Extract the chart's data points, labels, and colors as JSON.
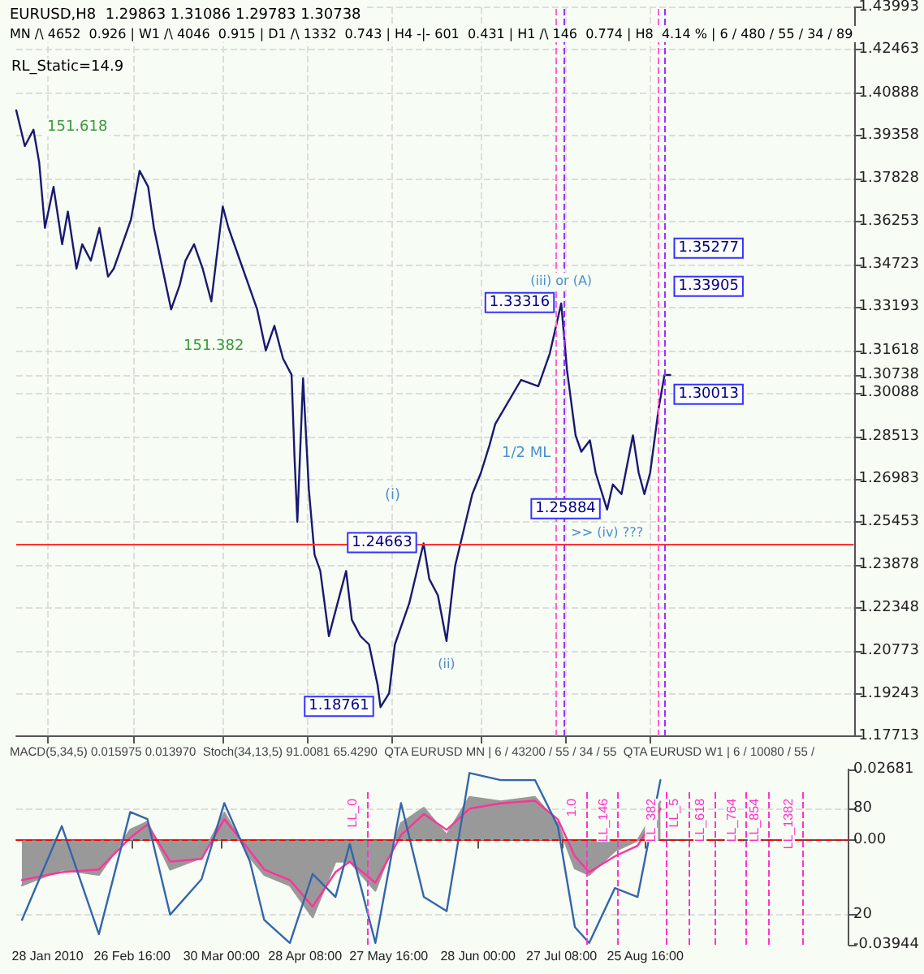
{
  "chart_data": [
    {
      "type": "line",
      "title": "EURUSD,H8  1.29863 1.31086 1.29783 1.30738",
      "subtitle": "MN /\\ 4652  0.926 | W1 /\\ 4046  0.915 | D1 /\\ 1332  0.743 | H4 -|- 601  0.431 | H1 /\\ 146  0.774 | H8  4.14 % | 6 / 480 / 55 / 34 / 89",
      "x": [
        "2010-01-17",
        "2010-01-20",
        "2010-01-23",
        "2010-01-25",
        "2010-01-27",
        "2010-01-30",
        "2010-02-02",
        "2010-02-04",
        "2010-02-07",
        "2010-02-09",
        "2010-02-12",
        "2010-02-15",
        "2010-02-18",
        "2010-02-20",
        "2010-02-23",
        "2010-02-26",
        "2010-03-01",
        "2010-03-04",
        "2010-03-06",
        "2010-03-09",
        "2010-03-12",
        "2010-03-15",
        "2010-03-17",
        "2010-03-20",
        "2010-03-23",
        "2010-03-26",
        "2010-03-30",
        "2010-04-01",
        "2010-04-06",
        "2010-04-09",
        "2010-04-11",
        "2010-04-14",
        "2010-04-17",
        "2010-04-20",
        "2010-04-23",
        "2010-04-24",
        "2010-04-25",
        "2010-04-27",
        "2010-04-29",
        "2010-05-01",
        "2010-05-03",
        "2010-05-06",
        "2010-05-09",
        "2010-05-12",
        "2010-05-14",
        "2010-05-17",
        "2010-05-20",
        "2010-05-23",
        "2010-05-24",
        "2010-05-27",
        "2010-05-29",
        "2010-06-01",
        "2010-06-03",
        "2010-06-08",
        "2010-06-10",
        "2010-06-13",
        "2010-06-16",
        "2010-06-19",
        "2010-06-25",
        "2010-06-28",
        "2010-07-01",
        "2010-07-03",
        "2010-07-12",
        "2010-07-18",
        "2010-07-22",
        "2010-07-26",
        "2010-07-28",
        "2010-07-31",
        "2010-08-02",
        "2010-08-05",
        "2010-08-07",
        "2010-08-11",
        "2010-08-13",
        "2010-08-16",
        "2010-08-20",
        "2010-08-22",
        "2010-08-24",
        "2010-08-26",
        "2010-08-29",
        "2010-08-31",
        "2010-09-02"
      ],
      "series": [
        {
          "color": "#191970",
          "values": [
            1.4028,
            1.3899,
            1.3958,
            1.384,
            1.3604,
            1.3752,
            1.3545,
            1.3663,
            1.3457,
            1.3545,
            1.3486,
            1.3604,
            1.3428,
            1.3457,
            1.3545,
            1.3634,
            1.381,
            1.3752,
            1.3604,
            1.3457,
            1.331,
            1.3398,
            1.3486,
            1.3545,
            1.3457,
            1.3339,
            1.3681,
            1.3604,
            1.3457,
            1.3369,
            1.331,
            1.3162,
            1.3251,
            1.3133,
            1.3074,
            1.278,
            1.2544,
            1.3062,
            1.2662,
            1.2426,
            1.2367,
            1.2132,
            1.225,
            1.2367,
            1.2191,
            1.2132,
            1.2102,
            1.1955,
            1.18761,
            1.1926,
            1.2102,
            1.2191,
            1.225,
            1.24663,
            1.2338,
            1.2279,
            1.2114,
            1.2385,
            1.2644,
            1.2721,
            1.2821,
            1.2897,
            1.3056,
            1.3033,
            1.3151,
            1.33316,
            1.3092,
            1.2856,
            1.2797,
            1.2838,
            1.2721,
            1.25884,
            1.2679,
            1.2644,
            1.2856,
            1.2721,
            1.2644,
            1.2721,
            1.2956,
            1.3074,
            1.30738
          ]
        }
      ],
      "xlim": [
        "2010-01-17",
        "2010-11-05"
      ],
      "xticks": [
        {
          "value": "2010-01-28",
          "label": null
        },
        {
          "value": "2010-02-26T16:00",
          "label": null
        },
        {
          "value": "2010-03-30",
          "label": null
        },
        {
          "value": "2010-04-28T08:00",
          "label": null
        },
        {
          "value": "2010-05-27T16:00",
          "label": null
        },
        {
          "value": "2010-06-28",
          "label": null
        },
        {
          "value": "2010-07-27T08:00",
          "label": null
        },
        {
          "value": "2010-08-25T16:00",
          "label": null
        }
      ],
      "ylim": [
        1.17713,
        1.43993
      ],
      "yticks": [
        1.43993,
        1.42463,
        1.40888,
        1.39358,
        1.37828,
        1.36253,
        1.34723,
        1.33193,
        1.31618,
        1.30738,
        1.30088,
        1.28513,
        1.26983,
        1.25453,
        1.23878,
        1.22348,
        1.20773,
        1.19243,
        1.17713
      ],
      "tick_labels": "y",
      "grid": true,
      "marker": "none",
      "line_style": "solid",
      "ref_lines": [
        {
          "axis": "y",
          "value": 1.24663,
          "color": "#ff3333",
          "line_style": "solid"
        },
        {
          "axis": "x",
          "value": "2010-07-24",
          "color": "#ff66cc",
          "line_style": "dashed"
        },
        {
          "axis": "x",
          "value": "2010-07-27",
          "color": "#9933ff",
          "line_style": "dashed"
        },
        {
          "axis": "x",
          "value": "2010-08-29",
          "color": "#ff66cc",
          "line_style": "dashed"
        },
        {
          "axis": "x",
          "value": "2010-08-31",
          "color": "#9933ff",
          "line_style": "dashed"
        }
      ],
      "annotations": [
        "RL_Static=14.9",
        "151.618",
        "151.382",
        "(i)",
        "1/2 ML",
        {
          "text": "1.33316",
          "x": "2010-07-26",
          "y": 1.33316
        },
        {
          "text": "1.25884",
          "x": "2010-08-11",
          "y": 1.25884
        },
        {
          "text": "1.24663",
          "x": "2010-06-08",
          "y": 1.24663
        },
        {
          "text": "1.18761",
          "x": "2010-05-24",
          "y": 1.18761
        },
        {
          "text": "1.30013",
          "x": "2010-09-02",
          "y": 1.30013
        },
        {
          "text": "1.33905",
          "x": "2010-09-02",
          "y": 1.33905
        },
        {
          "text": "1.35277",
          "x": "2010-09-02",
          "y": 1.35277
        },
        {
          "text": "(ii)",
          "x": "2010-06-16",
          "y": 1.2114
        },
        {
          "text": "(iii) or (A)",
          "x": "2010-07-26",
          "y": 1.33316
        },
        {
          "text": ">> (iv) ???",
          "x": "2010-08-11",
          "y": 1.25884
        }
      ]
    },
    {
      "type": "area",
      "title": "MACD(5,34,5) 0.015975 0.013970  Stoch(34,13,5) 91.0081 65.4290  QTA EURUSD MN | 6 / 43200 / 55 / 34 / 55  QTA EURUSD W1 | 6 / 10080 / 55 /",
      "x": [
        "2010-01-19",
        "2010-02-02",
        "2010-02-15",
        "2010-02-26",
        "2010-03-04",
        "2010-03-12",
        "2010-03-23",
        "2010-03-31",
        "2010-04-09",
        "2010-04-14",
        "2010-04-23",
        "2010-05-01",
        "2010-05-09",
        "2010-05-14",
        "2010-05-23",
        "2010-06-01",
        "2010-06-09",
        "2010-06-17",
        "2010-06-25",
        "2010-07-06",
        "2010-07-18",
        "2010-07-26",
        "2010-08-01",
        "2010-08-06",
        "2010-08-15",
        "2010-08-23",
        "2010-08-31"
      ],
      "series": [
        {
          "axis": "y2",
          "color": "#999999",
          "values": [
            -0.017,
            -0.011,
            -0.013,
            0.004,
            0.007,
            -0.011,
            -0.0065,
            0.0105,
            -0.0065,
            -0.013,
            -0.017,
            -0.029,
            -0.008,
            -0.008,
            -0.019,
            0.0065,
            0.0123,
            0.002,
            0.0164,
            0.0147,
            0.0164,
            0.0065,
            -0.0106,
            -0.013,
            -0.004,
            0,
            0.0147
          ]
        },
        {
          "type": "line",
          "axis": "y2",
          "color": "#ff3399",
          "values": [
            -0.015,
            -0.012,
            -0.011,
            0.001,
            0.006,
            -0.008,
            -0.007,
            0.008,
            -0.004,
            -0.011,
            -0.015,
            -0.025,
            -0.012,
            -0.008,
            -0.016,
            0.002,
            0.01,
            0.004,
            0.012,
            0.014,
            0.015,
            0.008,
            -0.006,
            -0.012,
            -0.006,
            -0.002,
            0.012
          ]
        },
        {
          "type": "line",
          "axis": "y",
          "color": "#3366aa",
          "values": [
            17,
            70,
            9,
            78,
            74,
            20,
            40,
            83,
            50,
            17,
            4,
            43,
            30,
            60,
            4,
            83,
            30,
            22,
            100,
            96,
            96,
            70,
            13,
            4,
            35,
            30,
            96
          ]
        }
      ],
      "xlim": [
        "2010-01-17",
        "2010-11-05"
      ],
      "xticks": [
        {
          "value": "2010-01-28",
          "label": "28 Jan 2010"
        },
        {
          "value": "2010-02-26T16:00",
          "label": "26 Feb 16:00"
        },
        {
          "value": "2010-03-30",
          "label": "30 Mar 00:00"
        },
        {
          "value": "2010-04-28T08:00",
          "label": "28 Apr 08:00"
        },
        {
          "value": "2010-05-27T16:00",
          "label": "27 May 16:00"
        },
        {
          "value": "2010-06-28",
          "label": "28 Jun 00:00"
        },
        {
          "value": "2010-07-27T08:00",
          "label": "27 Jul 08:00"
        },
        {
          "value": "2010-08-25T16:00",
          "label": "25 Aug 16:00"
        }
      ],
      "ylim": [
        3,
        102
      ],
      "yticks": [
        20,
        80
      ],
      "y2lim": [
        -0.03944,
        0.02681
      ],
      "y2ticks": [
        0.02681,
        {
          "value": 0,
          "label": "0.00"
        },
        -0.03944
      ],
      "grid": "y",
      "marker": "none",
      "ref_lines": [
        {
          "axis": "y2",
          "value": 0,
          "color": "#ff0000",
          "line_style": "dashed"
        },
        {
          "axis": "x",
          "value": "2010-05-20",
          "label": "LL_0",
          "color": "#ff33cc",
          "line_style": "dashed"
        },
        {
          "axis": "x",
          "value": "2010-08-05",
          "label": "1.0",
          "color": "#ff33cc",
          "line_style": "dashed"
        },
        {
          "axis": "x",
          "value": "2010-08-16",
          "label": "LL_146",
          "color": "#ff33cc",
          "line_style": "dashed"
        },
        {
          "axis": "x",
          "value": "2010-09-02",
          "label": "LL_382",
          "color": "#ff33cc",
          "line_style": "dashed"
        },
        {
          "axis": "x",
          "value": "2010-09-10",
          "label": "LL_5",
          "color": "#ff33cc",
          "line_style": "dashed"
        },
        {
          "axis": "x",
          "value": "2010-09-19",
          "label": "LL_618",
          "color": "#ff33cc",
          "line_style": "dashed"
        },
        {
          "axis": "x",
          "value": "2010-09-30",
          "label": "LL_764",
          "color": "#ff33cc",
          "line_style": "dashed"
        },
        {
          "axis": "x",
          "value": "2010-10-08",
          "label": "LL_854",
          "color": "#ff33cc",
          "line_style": "dashed"
        },
        {
          "axis": "x",
          "value": "2010-10-20",
          "label": "LL_1382",
          "color": "#ff33cc",
          "line_style": "dashed"
        }
      ]
    }
  ]
}
